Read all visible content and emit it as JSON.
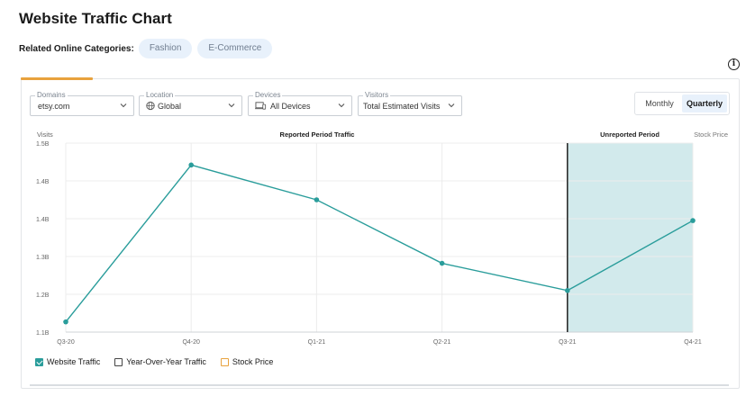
{
  "page": {
    "title": "Website Traffic Chart",
    "categories_label": "Related Online Categories:",
    "categories": [
      "Fashion",
      "E-Commerce"
    ]
  },
  "filters": {
    "domains": {
      "label": "Domains",
      "value": "etsy.com"
    },
    "location": {
      "label": "Location",
      "value": "Global"
    },
    "devices": {
      "label": "Devices",
      "value": "All Devices"
    },
    "visitors": {
      "label": "Visitors",
      "value": "Total Estimated Visits"
    }
  },
  "period_toggle": {
    "monthly": "Monthly",
    "quarterly": "Quarterly",
    "selected": "Quarterly"
  },
  "chart_labels": {
    "y_axis": "Visits",
    "reported": "Reported Period Traffic",
    "unreported": "Unreported Period",
    "stock_axis": "Stock Price"
  },
  "legend": {
    "website_traffic": "Website Traffic",
    "yoy": "Year-Over-Year Traffic",
    "stock": "Stock Price"
  },
  "colors": {
    "accent": "#e8a23d",
    "line": "#2a9d9b",
    "unreported_fill": "#d2eaec",
    "chip_bg": "#e8f1fb"
  },
  "chart_data": {
    "type": "line",
    "categories": [
      "Q3-20",
      "Q4-20",
      "Q1-21",
      "Q2-21",
      "Q3-21",
      "Q4-21"
    ],
    "y_tick_labels": [
      "1.1B",
      "1.2B",
      "1.3B",
      "1.4B",
      "1.4B",
      "1.5B"
    ],
    "ylim": [
      1.1,
      1.6
    ],
    "series": [
      {
        "name": "Website Traffic",
        "values": [
          1.127,
          1.542,
          1.45,
          1.282,
          1.21,
          1.395
        ]
      }
    ],
    "unreported_from": "Q3-21",
    "grid": true
  }
}
